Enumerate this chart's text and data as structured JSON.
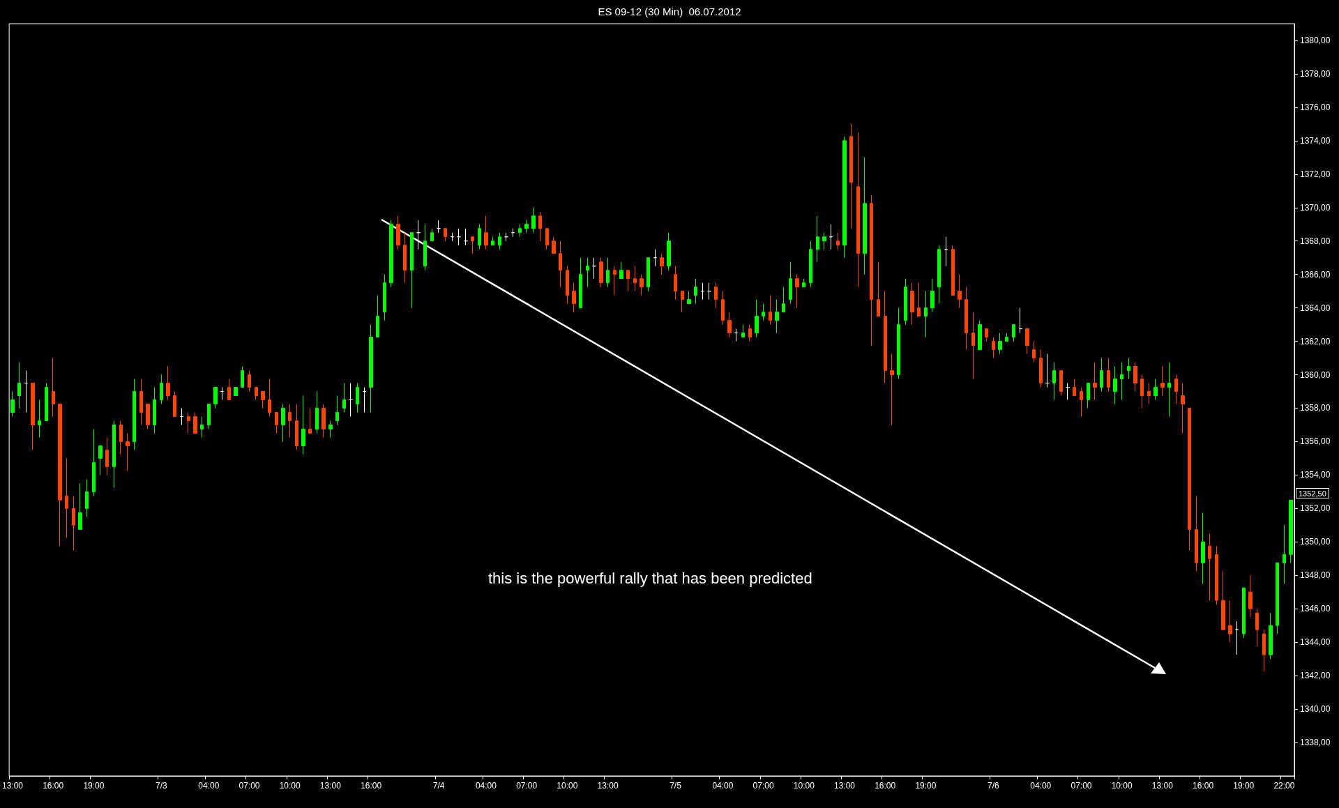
{
  "chart_data": {
    "type": "candlestick",
    "title": "ES 09-12 (30 Min)  06.07.2012",
    "annotations": [
      "this is the powerful rally that has been predicted",
      "1352,50"
    ],
    "categories": [
      "13:00",
      null,
      null,
      null,
      null,
      null,
      "16:00",
      null,
      null,
      null,
      null,
      null,
      "19:00",
      null,
      null,
      null,
      null,
      null,
      null,
      null,
      null,
      null,
      "7/3",
      null,
      null,
      null,
      null,
      null,
      null,
      "04:00",
      null,
      null,
      null,
      null,
      null,
      "07:00",
      null,
      null,
      null,
      null,
      null,
      "10:00",
      null,
      null,
      null,
      null,
      null,
      "13:00",
      null,
      null,
      null,
      null,
      null,
      "16:00",
      null,
      null,
      null,
      null,
      null,
      null,
      null,
      null,
      null,
      "7/4",
      null,
      null,
      null,
      null,
      null,
      null,
      "04:00",
      null,
      null,
      null,
      null,
      null,
      "07:00",
      null,
      null,
      null,
      null,
      null,
      "10:00",
      null,
      null,
      null,
      null,
      null,
      "13:00",
      null,
      null,
      null,
      null,
      null,
      null,
      null,
      null,
      null,
      "7/5",
      null,
      null,
      null,
      null,
      null,
      null,
      "04:00",
      null,
      null,
      null,
      null,
      null,
      "07:00",
      null,
      null,
      null,
      null,
      null,
      "10:00",
      null,
      null,
      null,
      null,
      null,
      "13:00",
      null,
      null,
      null,
      null,
      null,
      "16:00",
      null,
      null,
      null,
      null,
      null,
      "19:00",
      null,
      null,
      null,
      null,
      null,
      null,
      null,
      null,
      null,
      "7/6",
      null,
      null,
      null,
      null,
      null,
      null,
      "04:00",
      null,
      null,
      null,
      null,
      null,
      "07:00",
      null,
      null,
      null,
      null,
      null,
      "10:00",
      null,
      null,
      null,
      null,
      null,
      "13:00",
      null,
      null,
      null,
      null,
      null,
      "16:00",
      null,
      null,
      null,
      null,
      null,
      "19:00",
      null,
      null,
      null,
      null,
      null,
      "22:00",
      null
    ],
    "ohlc": [
      [
        1357.75,
        1359,
        1357.5,
        1358.5
      ],
      [
        1358.75,
        1360.75,
        1358,
        1359.5
      ],
      [
        1359.5,
        1360.25,
        1357.75,
        1359.5
      ],
      [
        1359.5,
        1359.5,
        1355.5,
        1357
      ],
      [
        1357,
        1358.5,
        1356.25,
        1357.25
      ],
      [
        1357.25,
        1359.5,
        1357.25,
        1359.25
      ],
      [
        1359,
        1361,
        1357.5,
        1358.25
      ],
      [
        1358.25,
        1358.25,
        1349.75,
        1352.5
      ],
      [
        1352.75,
        1355,
        1350.25,
        1352
      ],
      [
        1352,
        1352.75,
        1349.5,
        1351
      ],
      [
        1350.75,
        1353.5,
        1350.75,
        1351.75
      ],
      [
        1352,
        1353.75,
        1351.5,
        1353
      ],
      [
        1353,
        1356.75,
        1352.75,
        1354.75
      ],
      [
        1355,
        1355.75,
        1354,
        1355.75
      ],
      [
        1355.5,
        1356.25,
        1354,
        1354.5
      ],
      [
        1354.5,
        1357.25,
        1353.25,
        1357
      ],
      [
        1357,
        1357.25,
        1355.25,
        1356
      ],
      [
        1356,
        1356.5,
        1354.25,
        1355.75
      ],
      [
        1356,
        1359.75,
        1355.5,
        1359
      ],
      [
        1359,
        1359.75,
        1357,
        1357.75
      ],
      [
        1358.25,
        1358.25,
        1356.75,
        1357
      ],
      [
        1357,
        1359.25,
        1356.5,
        1358.5
      ],
      [
        1358.5,
        1360,
        1358.25,
        1359.5
      ],
      [
        1359.5,
        1360.5,
        1358.5,
        1358.75
      ],
      [
        1358.75,
        1359,
        1357.5,
        1357.5
      ],
      [
        1357.5,
        1358,
        1357,
        1357.5
      ],
      [
        1357.5,
        1357.75,
        1356.5,
        1357.25
      ],
      [
        1357.5,
        1357.75,
        1356.5,
        1356.5
      ],
      [
        1356.75,
        1357.5,
        1356.25,
        1357
      ],
      [
        1357,
        1358.25,
        1356.75,
        1358.25
      ],
      [
        1358.25,
        1359.25,
        1358,
        1359.25
      ],
      [
        1359,
        1359.25,
        1358.5,
        1359
      ],
      [
        1359.25,
        1359.75,
        1358.5,
        1358.5
      ],
      [
        1358.75,
        1359.25,
        1358.75,
        1359.25
      ],
      [
        1359.25,
        1360.5,
        1359.25,
        1360.25
      ],
      [
        1360,
        1360.25,
        1359,
        1359.25
      ],
      [
        1359.25,
        1359.25,
        1358.5,
        1358.75
      ],
      [
        1359,
        1359,
        1358,
        1358.5
      ],
      [
        1358.5,
        1359.75,
        1357.5,
        1357.75
      ],
      [
        1357.75,
        1357.75,
        1356.5,
        1357
      ],
      [
        1357,
        1358.25,
        1356,
        1358
      ],
      [
        1357.75,
        1358.25,
        1356.25,
        1357.25
      ],
      [
        1357.25,
        1358.25,
        1355.5,
        1355.75
      ],
      [
        1355.75,
        1358.75,
        1355.25,
        1356.75
      ],
      [
        1356.75,
        1358,
        1356.5,
        1356.5
      ],
      [
        1356.75,
        1359,
        1356.5,
        1358
      ],
      [
        1358,
        1358.25,
        1356.25,
        1356.75
      ],
      [
        1356.75,
        1357.25,
        1356.25,
        1357
      ],
      [
        1357.25,
        1358.75,
        1357,
        1357.75
      ],
      [
        1358,
        1359.5,
        1357.75,
        1358.5
      ],
      [
        1358.5,
        1359.5,
        1357.5,
        1358.5
      ],
      [
        1358.25,
        1359.5,
        1357.75,
        1359.25
      ],
      [
        1359,
        1359.25,
        1357.75,
        1359
      ],
      [
        1359.25,
        1363,
        1357.75,
        1362.25
      ],
      [
        1362.25,
        1364.75,
        1362.25,
        1363.5
      ],
      [
        1363.75,
        1366,
        1363.25,
        1365.5
      ],
      [
        1365.5,
        1369.25,
        1365.25,
        1369
      ],
      [
        1369,
        1369.5,
        1367.5,
        1367.75
      ],
      [
        1367.75,
        1368.5,
        1365.5,
        1366.25
      ],
      [
        1366.25,
        1368.5,
        1364,
        1368.5
      ],
      [
        1368.5,
        1369.25,
        1367.5,
        1368.5
      ],
      [
        1366.5,
        1369,
        1366.25,
        1368
      ],
      [
        1368,
        1368.75,
        1368,
        1368.5
      ],
      [
        1368.75,
        1369.25,
        1368.5,
        1368.75
      ],
      [
        1368.75,
        1368.75,
        1368,
        1368.25
      ],
      [
        1368.25,
        1368.5,
        1368,
        1368.25
      ],
      [
        1368.25,
        1368.75,
        1367.75,
        1368.25
      ],
      [
        1368,
        1368.75,
        1367.75,
        1368
      ],
      [
        1368.25,
        1368.25,
        1367.25,
        1368
      ],
      [
        1367.75,
        1369,
        1367.5,
        1368.75
      ],
      [
        1368.5,
        1369.5,
        1367.5,
        1367.75
      ],
      [
        1367.75,
        1368.25,
        1367.75,
        1368
      ],
      [
        1367.75,
        1368.5,
        1367.5,
        1368.25
      ],
      [
        1368.25,
        1368.5,
        1368,
        1368.25
      ],
      [
        1368.5,
        1368.75,
        1368.25,
        1368.5
      ],
      [
        1368.5,
        1369,
        1368.25,
        1368.75
      ],
      [
        1368.75,
        1369.25,
        1368.5,
        1369
      ],
      [
        1368.75,
        1370,
        1368.5,
        1369.5
      ],
      [
        1369.5,
        1369.75,
        1368,
        1368.75
      ],
      [
        1368.75,
        1368.75,
        1367.5,
        1367.75
      ],
      [
        1368,
        1368.25,
        1367.25,
        1367.25
      ],
      [
        1367.25,
        1368,
        1365.25,
        1366.25
      ],
      [
        1366.25,
        1366.5,
        1364.25,
        1364.75
      ],
      [
        1365,
        1365.5,
        1363.75,
        1364.25
      ],
      [
        1364,
        1367,
        1364,
        1366
      ],
      [
        1366.25,
        1367,
        1365.25,
        1366.5
      ],
      [
        1366.5,
        1367,
        1365.75,
        1366.5
      ],
      [
        1366.75,
        1367,
        1365.25,
        1365.5
      ],
      [
        1365.5,
        1367,
        1365.25,
        1366.25
      ],
      [
        1366.25,
        1366.5,
        1364.75,
        1366
      ],
      [
        1365.75,
        1366.75,
        1365.75,
        1366.25
      ],
      [
        1366.25,
        1366.25,
        1365,
        1365.75
      ],
      [
        1365.75,
        1366.5,
        1365,
        1365.5
      ],
      [
        1365.75,
        1366,
        1364.75,
        1365.25
      ],
      [
        1365.25,
        1367,
        1365,
        1367
      ],
      [
        1367,
        1367.5,
        1366.5,
        1367
      ],
      [
        1367,
        1367.25,
        1366,
        1366.5
      ],
      [
        1366.5,
        1368.5,
        1366.25,
        1368
      ],
      [
        1366,
        1366.5,
        1364.5,
        1365
      ],
      [
        1365,
        1365,
        1363.75,
        1364.5
      ],
      [
        1364.25,
        1365,
        1364.25,
        1364.5
      ],
      [
        1364.75,
        1365.75,
        1364.25,
        1365.25
      ],
      [
        1365,
        1365.5,
        1364.5,
        1365
      ],
      [
        1365,
        1365.5,
        1364.5,
        1365
      ],
      [
        1365.25,
        1365.5,
        1364,
        1364.5
      ],
      [
        1364.5,
        1365,
        1363,
        1363.25
      ],
      [
        1363.25,
        1363.75,
        1362.25,
        1362.5
      ],
      [
        1362.5,
        1362.75,
        1362,
        1362.5
      ],
      [
        1362.25,
        1363,
        1362.25,
        1362.5
      ],
      [
        1362.75,
        1363,
        1362,
        1362.25
      ],
      [
        1362.5,
        1364.5,
        1362.25,
        1363.5
      ],
      [
        1363.5,
        1364.25,
        1363.25,
        1363.75
      ],
      [
        1363.75,
        1364.75,
        1363,
        1363.25
      ],
      [
        1363.25,
        1364.5,
        1362.5,
        1363.75
      ],
      [
        1363.75,
        1365.25,
        1363.75,
        1364.25
      ],
      [
        1364.5,
        1366.75,
        1364.25,
        1365.75
      ],
      [
        1365.75,
        1366,
        1364,
        1365.25
      ],
      [
        1365.25,
        1365.75,
        1365.25,
        1365.5
      ],
      [
        1365.5,
        1368,
        1365.25,
        1367.5
      ],
      [
        1367.5,
        1369.5,
        1366.75,
        1368.25
      ],
      [
        1368,
        1368.5,
        1367.5,
        1368.25
      ],
      [
        1368.25,
        1369,
        1367.5,
        1368.25
      ],
      [
        1368,
        1368.5,
        1367.5,
        1367.75
      ],
      [
        1367.75,
        1374.25,
        1367,
        1374
      ],
      [
        1374.25,
        1375,
        1368.75,
        1371.5
      ],
      [
        1371.25,
        1374.5,
        1365.25,
        1367.25
      ],
      [
        1367.25,
        1373,
        1366,
        1370.25
      ],
      [
        1370.25,
        1370.75,
        1361.75,
        1364.5
      ],
      [
        1364.5,
        1366.75,
        1363.5,
        1363.5
      ],
      [
        1363.5,
        1365,
        1359.5,
        1360.25
      ],
      [
        1360.25,
        1361.25,
        1357,
        1360
      ],
      [
        1360,
        1364,
        1359.75,
        1363
      ],
      [
        1363.25,
        1365.75,
        1363,
        1365.25
      ],
      [
        1365,
        1365.5,
        1363,
        1363.75
      ],
      [
        1364,
        1365.5,
        1363.5,
        1363.5
      ],
      [
        1363.5,
        1365,
        1362.25,
        1364
      ],
      [
        1364,
        1365.75,
        1363.75,
        1365
      ],
      [
        1365.25,
        1367.75,
        1364.25,
        1367.5
      ],
      [
        1367.5,
        1368.25,
        1366.5,
        1367.5
      ],
      [
        1367.5,
        1367.75,
        1364.75,
        1364.75
      ],
      [
        1365,
        1366,
        1364,
        1364.5
      ],
      [
        1364.5,
        1365.25,
        1361.5,
        1362.5
      ],
      [
        1362.5,
        1363.75,
        1359.75,
        1361.75
      ],
      [
        1361.5,
        1363.25,
        1361.5,
        1363
      ],
      [
        1362.75,
        1362.75,
        1362,
        1362.25
      ],
      [
        1362,
        1362.25,
        1361,
        1361.5
      ],
      [
        1361.5,
        1362.5,
        1361.25,
        1362
      ],
      [
        1362,
        1362.5,
        1362,
        1362.25
      ],
      [
        1362.25,
        1363,
        1362,
        1363
      ],
      [
        1362.75,
        1364,
        1362.5,
        1362.75
      ],
      [
        1362.75,
        1362.75,
        1361.25,
        1361.75
      ],
      [
        1361.5,
        1362,
        1360.75,
        1361
      ],
      [
        1361,
        1361.5,
        1359.25,
        1359.5
      ],
      [
        1359.5,
        1361.25,
        1359.25,
        1359.5
      ],
      [
        1359.5,
        1360.75,
        1358.5,
        1360.25
      ],
      [
        1360.25,
        1360.25,
        1358.75,
        1359
      ],
      [
        1359.25,
        1359.5,
        1358.5,
        1359.25
      ],
      [
        1359.25,
        1359.75,
        1358.75,
        1358.75
      ],
      [
        1359,
        1359.25,
        1357.5,
        1358.5
      ],
      [
        1358.5,
        1359.5,
        1358,
        1359.5
      ],
      [
        1359.5,
        1360.75,
        1358.5,
        1359.25
      ],
      [
        1359.25,
        1361,
        1359,
        1360.25
      ],
      [
        1360.25,
        1361,
        1359,
        1359.25
      ],
      [
        1359,
        1360.5,
        1358.25,
        1359.75
      ],
      [
        1359.75,
        1360.75,
        1358.5,
        1360
      ],
      [
        1360.25,
        1361,
        1359.75,
        1360.5
      ],
      [
        1360.5,
        1360.75,
        1359,
        1359.5
      ],
      [
        1359.75,
        1360,
        1358,
        1358.75
      ],
      [
        1359,
        1359.5,
        1358.25,
        1358.75
      ],
      [
        1358.75,
        1359.75,
        1358.5,
        1359.25
      ],
      [
        1359.5,
        1360.5,
        1358.75,
        1359.25
      ],
      [
        1359.25,
        1360.75,
        1357.5,
        1359.5
      ],
      [
        1359.75,
        1360,
        1358.25,
        1359
      ],
      [
        1358.75,
        1359.5,
        1356.5,
        1358.25
      ],
      [
        1358,
        1358,
        1349.5,
        1350.75
      ],
      [
        1350.75,
        1352.75,
        1348.25,
        1348.75
      ],
      [
        1348.75,
        1351.75,
        1347.5,
        1350
      ],
      [
        1349.75,
        1350.5,
        1346.5,
        1349
      ],
      [
        1349.25,
        1349.75,
        1346.25,
        1346.5
      ],
      [
        1346.5,
        1348.25,
        1344.75,
        1344.75
      ],
      [
        1345,
        1346.5,
        1344,
        1344.5
      ],
      [
        1344.75,
        1345.25,
        1343.25,
        1344.75
      ],
      [
        1344.5,
        1347.25,
        1344.25,
        1347.25
      ],
      [
        1347,
        1348,
        1345.5,
        1346
      ],
      [
        1345.75,
        1346,
        1343.75,
        1344.75
      ],
      [
        1344.5,
        1344.75,
        1342.25,
        1343.25
      ],
      [
        1343.25,
        1345.75,
        1343,
        1345
      ],
      [
        1345,
        1348.75,
        1344.5,
        1348.75
      ],
      [
        1348.75,
        1351,
        1347.5,
        1349.25
      ],
      [
        1349.25,
        1352.5,
        1348.75,
        1352.5
      ]
    ],
    "ylim": [
      1336,
      1381
    ],
    "yticks": [
      {
        "value": 1338,
        "label": "1338,00"
      },
      {
        "value": 1340,
        "label": "1340,00"
      },
      {
        "value": 1342,
        "label": "1342,00"
      },
      {
        "value": 1344,
        "label": "1344,00"
      },
      {
        "value": 1346,
        "label": "1346,00"
      },
      {
        "value": 1348,
        "label": "1348,00"
      },
      {
        "value": 1350,
        "label": "1350,00"
      },
      {
        "value": 1352,
        "label": "1352,00"
      },
      {
        "value": 1354,
        "label": "1354,00"
      },
      {
        "value": 1356,
        "label": "1356,00"
      },
      {
        "value": 1358,
        "label": "1358,00"
      },
      {
        "value": 1360,
        "label": "1360,00"
      },
      {
        "value": 1362,
        "label": "1362,00"
      },
      {
        "value": 1364,
        "label": "1364,00"
      },
      {
        "value": 1366,
        "label": "1366,00"
      },
      {
        "value": 1368,
        "label": "1368,00"
      },
      {
        "value": 1370,
        "label": "1370,00"
      },
      {
        "value": 1372,
        "label": "1372,00"
      },
      {
        "value": 1374,
        "label": "1374,00"
      },
      {
        "value": 1376,
        "label": "1376,00"
      },
      {
        "value": 1378,
        "label": "1378,00"
      },
      {
        "value": 1380,
        "label": "1380,00"
      }
    ],
    "grid": false
  }
}
